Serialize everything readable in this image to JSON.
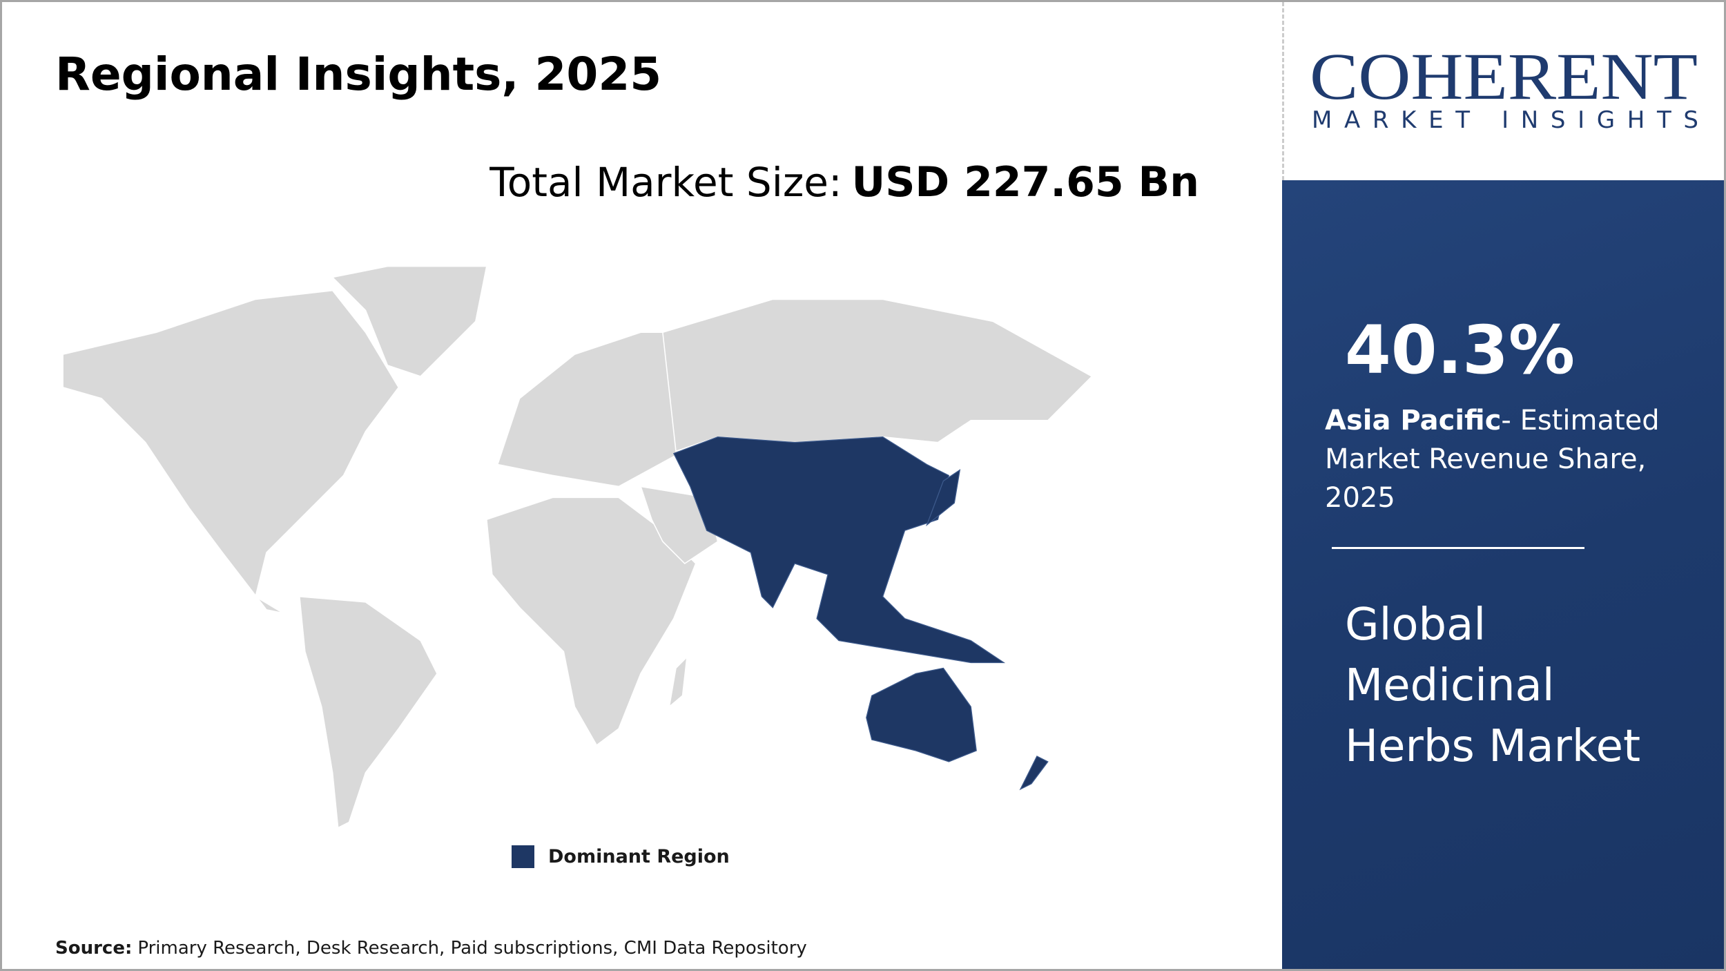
{
  "header": {
    "title": "Regional Insights, 2025",
    "market_size_label": "Total Market Size:",
    "market_size_value": "USD 227.65 Bn"
  },
  "logo": {
    "name": "COHERENT",
    "tagline": "MARKET INSIGHTS"
  },
  "panel": {
    "share": "40.3%",
    "region": "Asia Pacific",
    "share_caption": "- Estimated Market Revenue Share, 2025",
    "market_name": "Global Medicinal Herbs Market"
  },
  "legend": {
    "label": "Dominant Region"
  },
  "footer": {
    "source_label": "Source:",
    "source_text": "Primary Research, Desk Research, Paid subscriptions, CMI Data Repository"
  }
}
